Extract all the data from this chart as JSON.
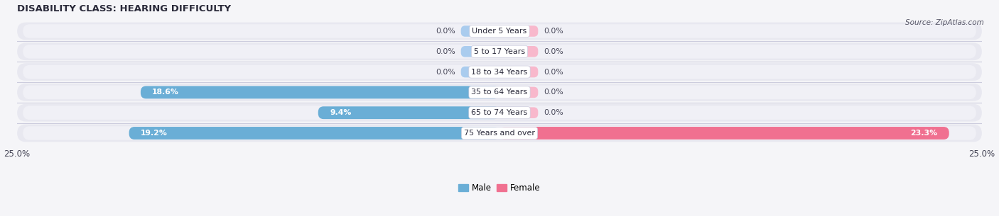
{
  "title": "DISABILITY CLASS: HEARING DIFFICULTY",
  "source": "Source: ZipAtlas.com",
  "categories": [
    "Under 5 Years",
    "5 to 17 Years",
    "18 to 34 Years",
    "35 to 64 Years",
    "65 to 74 Years",
    "75 Years and over"
  ],
  "male_values": [
    0.0,
    0.0,
    0.0,
    18.6,
    9.4,
    19.2
  ],
  "female_values": [
    0.0,
    0.0,
    0.0,
    0.0,
    0.0,
    23.3
  ],
  "male_color": "#6aaed6",
  "female_color": "#f07090",
  "male_color_zero": "#aaccee",
  "female_color_zero": "#f8b8cc",
  "bg_row_color": "#e8e8f0",
  "bg_white": "#f8f8fc",
  "max_val": 25.0,
  "bar_height": 0.7,
  "zero_bar_width": 2.0,
  "title_fontsize": 9.5,
  "label_fontsize": 8,
  "cat_fontsize": 8,
  "source_fontsize": 7.5
}
